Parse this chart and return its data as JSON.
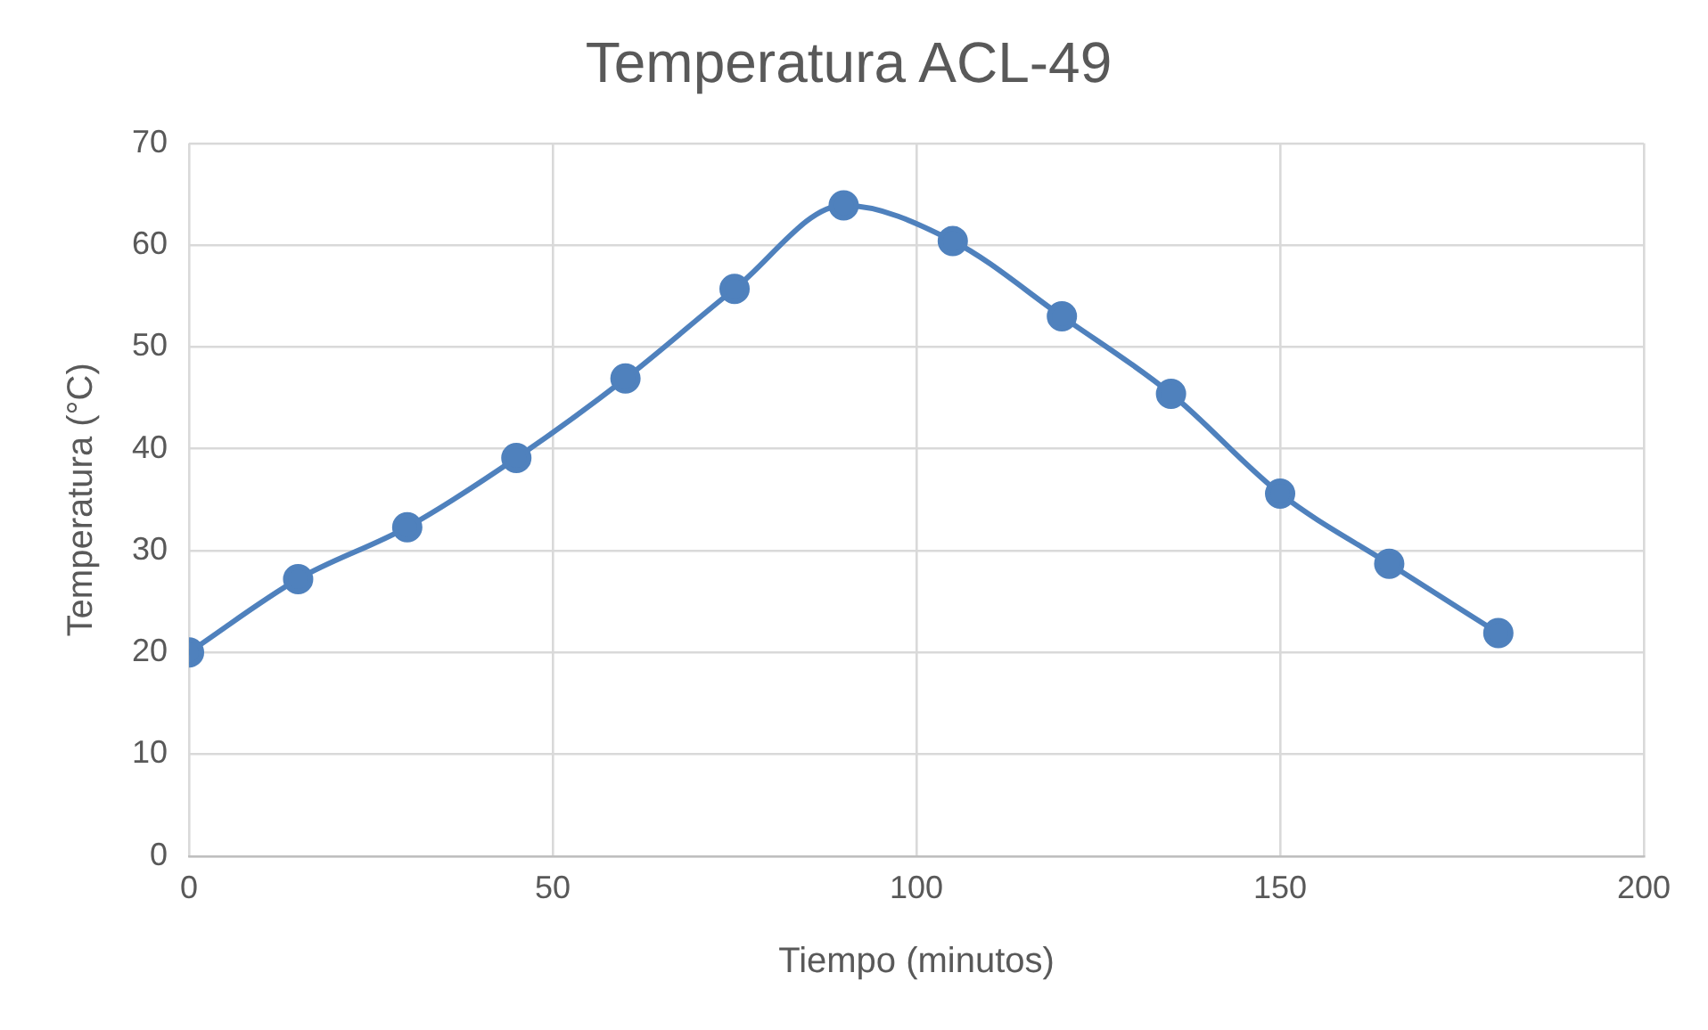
{
  "chart_data": {
    "type": "line",
    "title": "Temperatura ACL-49",
    "xlabel": "Tiempo (minutos)",
    "ylabel": "Temperatura (°C)",
    "x": [
      0,
      15,
      30,
      45,
      60,
      75,
      90,
      105,
      120,
      135,
      150,
      165,
      180
    ],
    "series": [
      {
        "color": "#4f81bd",
        "values": [
          20,
          27.2,
          32.3,
          39.1,
          46.9,
          55.7,
          63.9,
          60.4,
          53,
          45.4,
          35.6,
          28.7,
          21.9
        ]
      }
    ],
    "xlim": [
      0,
      200
    ],
    "xticks": [
      0,
      50,
      100,
      150,
      200
    ],
    "ylim": [
      0,
      70
    ],
    "yticks": [
      0,
      10,
      20,
      30,
      40,
      50,
      60,
      70
    ],
    "grid": true,
    "legend": false,
    "marker": "circle",
    "line_style": "solid"
  }
}
